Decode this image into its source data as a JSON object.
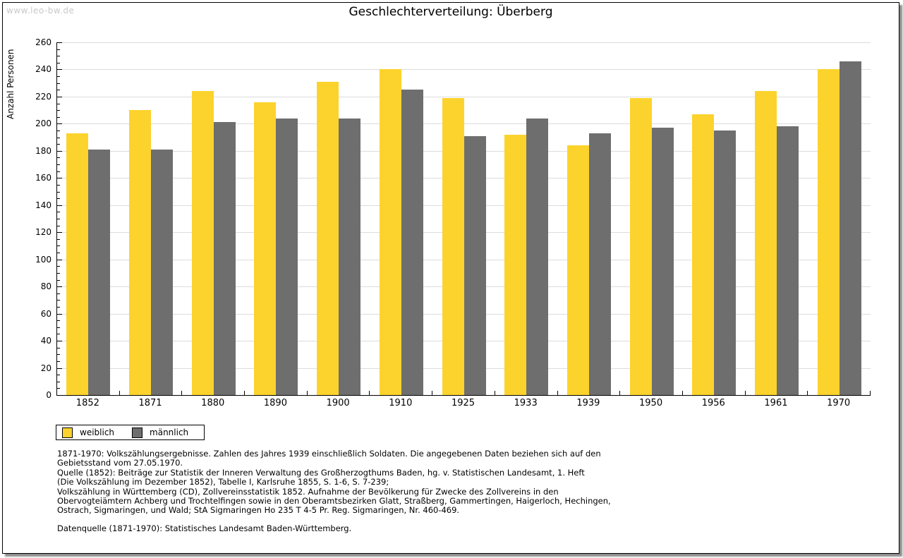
{
  "watermark": "www.leo-bw.de",
  "title": "Geschlechterverteilung: Überberg",
  "chart_data": {
    "type": "bar",
    "title": "Geschlechterverteilung: Überberg",
    "ylabel": "Anzahl Personen",
    "xlabel": "",
    "ylim": [
      0,
      260
    ],
    "ytick_step": 20,
    "ytick_minor_step": 5,
    "grid": true,
    "legend_position": "bottom-left",
    "categories": [
      "1852",
      "1871",
      "1880",
      "1890",
      "1900",
      "1910",
      "1925",
      "1933",
      "1939",
      "1950",
      "1956",
      "1961",
      "1970"
    ],
    "series": [
      {
        "name": "weiblich",
        "color": "#fcd32d",
        "values": [
          193,
          210,
          224,
          216,
          231,
          240,
          219,
          192,
          184,
          219,
          207,
          224,
          240
        ]
      },
      {
        "name": "männlich",
        "color": "#6e6e6e",
        "values": [
          181,
          181,
          201,
          204,
          204,
          225,
          191,
          204,
          193,
          197,
          195,
          198,
          246
        ]
      }
    ]
  },
  "colors": {
    "weiblich": "#fcd32d",
    "maennlich": "#6e6e6e",
    "gridline": "#dcdcdc",
    "watermark": "#c9c9c9"
  },
  "footnote_lines": [
    "1871-1970: Volkszählungsergebnisse. Zahlen des Jahres 1939 einschließlich Soldaten. Die angegebenen Daten beziehen sich auf den",
    "Gebietsstand vom 27.05.1970.",
    "Quelle (1852): Beiträge zur Statistik der Inneren Verwaltung des Großherzogthums Baden, hg. v. Statistischen Landesamt, 1. Heft",
    "(Die Volkszählung im Dezember 1852), Tabelle I, Karlsruhe 1855, S. 1-6, S. 7-239;",
    "Volkszählung in Württemberg (CD), Zollvereinsstatistik 1852. Aufnahme der Bevölkerung für Zwecke des Zollvereins in den",
    "Obervogteiämtern Achberg und Trochtelfingen sowie in den Oberamtsbezirken Glatt, Straßberg, Gammertingen, Haigerloch, Hechingen,",
    "Ostrach, Sigmaringen, und Wald; StA Sigmaringen Ho 235 T 4-5 Pr. Reg. Sigmaringen, Nr. 460-469."
  ],
  "datasource_line": "Datenquelle (1871-1970): Statistisches Landesamt Baden-Württemberg."
}
